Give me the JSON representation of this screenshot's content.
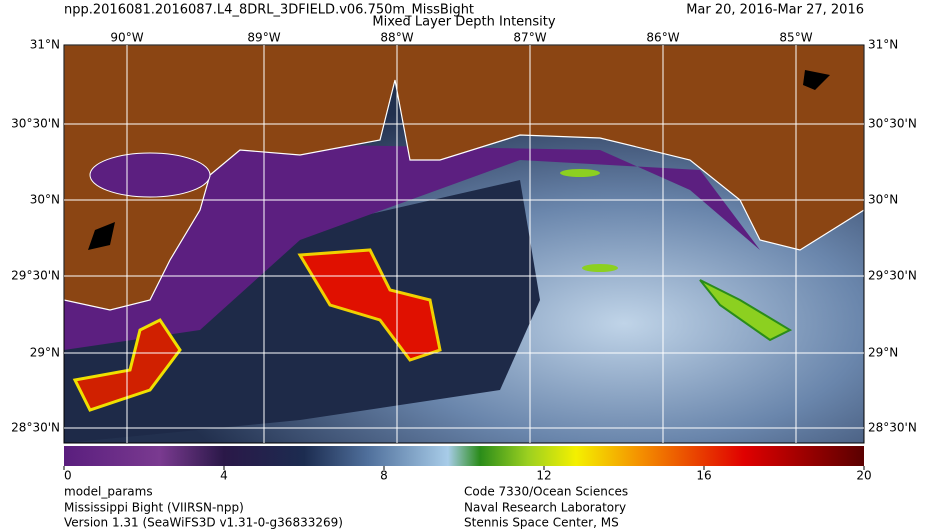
{
  "header": {
    "filename": "npp.2016081.2016087.L4_8DRL_3DFIELD.v06.750m_MissBight",
    "title": "Mixed Layer Depth Intensity",
    "date_range": "Mar 20, 2016-Mar 27, 2016"
  },
  "map": {
    "lon_labels": [
      "90°W",
      "89°W",
      "88°W",
      "87°W",
      "86°W",
      "85°W"
    ],
    "lat_labels": [
      "31°N",
      "30°30'N",
      "30°N",
      "29°30'N",
      "29°N",
      "28°30'N"
    ]
  },
  "colorbar": {
    "lim": [
      0,
      20
    ],
    "ticks": [
      0,
      4,
      8,
      12,
      16,
      20
    ]
  },
  "footer": {
    "left": [
      "model_params",
      "Mississippi Bight (VIIRSN-npp)",
      "Version 1.31 (SeaWiFS3D v1.31-0-g36833269)"
    ],
    "right": [
      "Code 7330/Ocean Sciences",
      "Naval Research Laboratory",
      "Stennis Space Center, MS"
    ]
  }
}
